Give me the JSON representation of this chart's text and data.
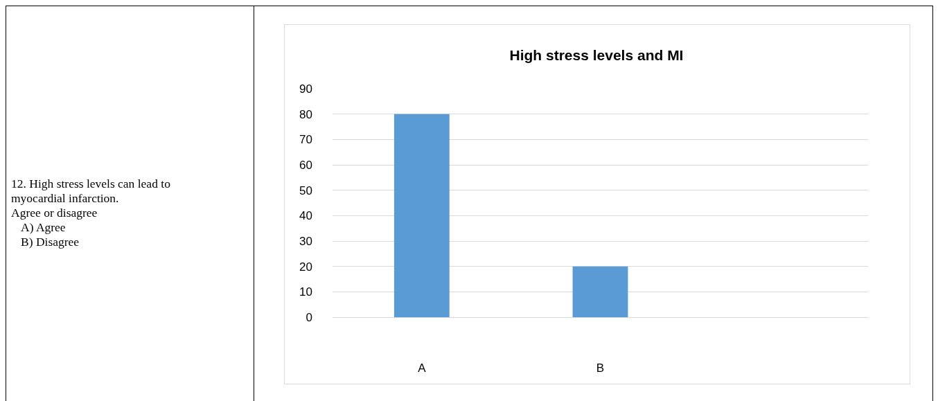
{
  "chart_data": {
    "type": "bar",
    "title": "High stress levels and MI",
    "categories": [
      "A",
      "B",
      null
    ],
    "values": [
      80,
      20,
      null
    ],
    "color": "#5b9bd5",
    "ylim": [
      0,
      90
    ],
    "yticks": [
      0,
      10,
      20,
      30,
      40,
      50,
      60,
      70,
      80,
      90
    ],
    "grid": "y",
    "legend": false,
    "annotations": [
      "12. High stress levels can lead to myocardial infarction.",
      "Agree or disagree",
      "A) Agree",
      "B) Disagree"
    ]
  }
}
